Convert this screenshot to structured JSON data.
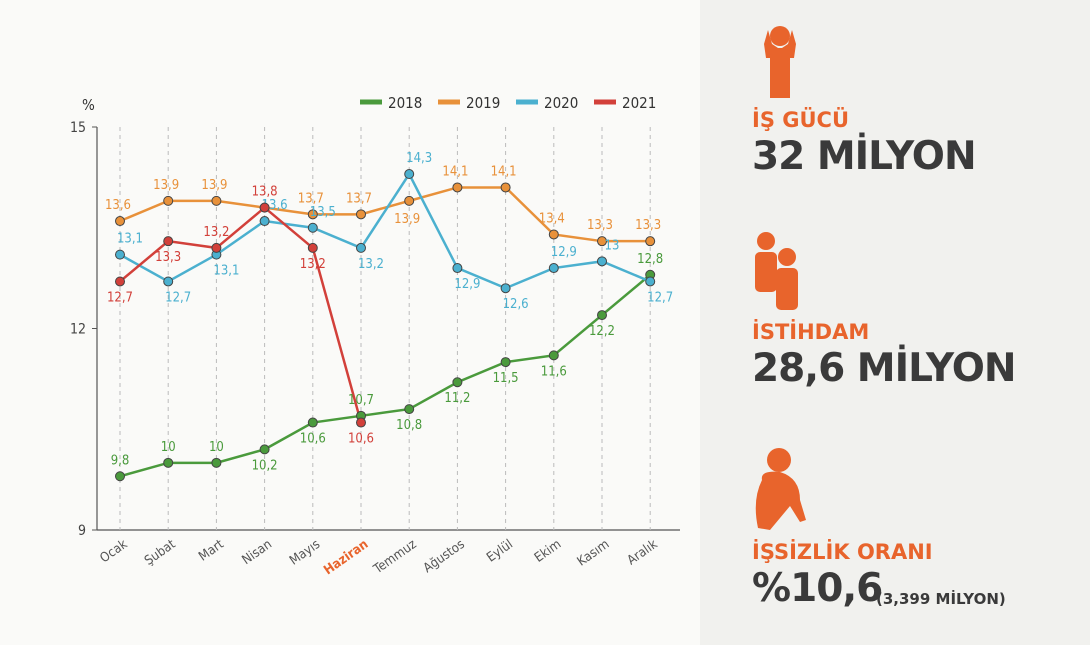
{
  "chart_data": {
    "type": "line",
    "y_label": "%",
    "categories": [
      "Ocak",
      "Şubat",
      "Mart",
      "Nisan",
      "Mayıs",
      "Haziran",
      "Temmuz",
      "Ağustos",
      "Eylül",
      "Ekim",
      "Kasım",
      "Aralık"
    ],
    "highlight_index": 5,
    "highlight_color": "#e8642c",
    "ylim": [
      9,
      15
    ],
    "yticks": [
      9,
      12,
      15
    ],
    "grid": true,
    "legend": "top",
    "series": [
      {
        "name": "2018",
        "color": "#4a9a3c",
        "values": [
          9.8,
          10,
          10,
          10.2,
          10.6,
          10.7,
          10.8,
          11.2,
          11.5,
          11.6,
          12.2,
          12.8
        ],
        "value_labels": [
          "9,8",
          "10",
          "10",
          "10,2",
          "10,6",
          "10,7",
          "10,8",
          "11,2",
          "11,5",
          "11,6",
          "12,2",
          "12,8"
        ]
      },
      {
        "name": "2019",
        "color": "#e8913a",
        "values": [
          13.6,
          13.9,
          13.9,
          13.8,
          13.7,
          13.7,
          13.9,
          14.1,
          14.1,
          13.4,
          13.3,
          13.3
        ],
        "value_labels": [
          "13,6",
          "13,9",
          "13,9",
          null,
          "13,7",
          "13,7",
          "13,9",
          "14,1",
          "14,1",
          "13,4",
          "13,3",
          "13,3"
        ]
      },
      {
        "name": "2020",
        "color": "#4bb0cf",
        "values": [
          13.1,
          12.7,
          13.1,
          13.6,
          13.5,
          13.2,
          14.3,
          12.9,
          12.6,
          12.9,
          13,
          12.7
        ],
        "value_labels": [
          "13,1",
          "12,7",
          "13,1",
          "13,6",
          "13,5",
          "13,2",
          "14,3",
          "12,9",
          "12,6",
          "12,9",
          "13",
          "12,7"
        ]
      },
      {
        "name": "2021",
        "color": "#d2403a",
        "values": [
          12.7,
          13.3,
          13.2,
          13.8,
          13.2,
          10.6,
          null,
          null,
          null,
          null,
          null,
          null
        ],
        "value_labels": [
          "12,7",
          "13,3",
          "13,2",
          "13,8",
          "13,2",
          "10,6",
          null,
          null,
          null,
          null,
          null,
          null
        ]
      }
    ]
  },
  "panel": {
    "items": [
      {
        "label": "İŞ GÜCÜ",
        "value": "32 MİLYON"
      },
      {
        "label": "İSTİHDAM",
        "value": "28,6 MİLYON"
      },
      {
        "label": "İŞSİZLİK ORANI",
        "value": "%10,6",
        "note": "(3,399 MİLYON)"
      }
    ]
  }
}
